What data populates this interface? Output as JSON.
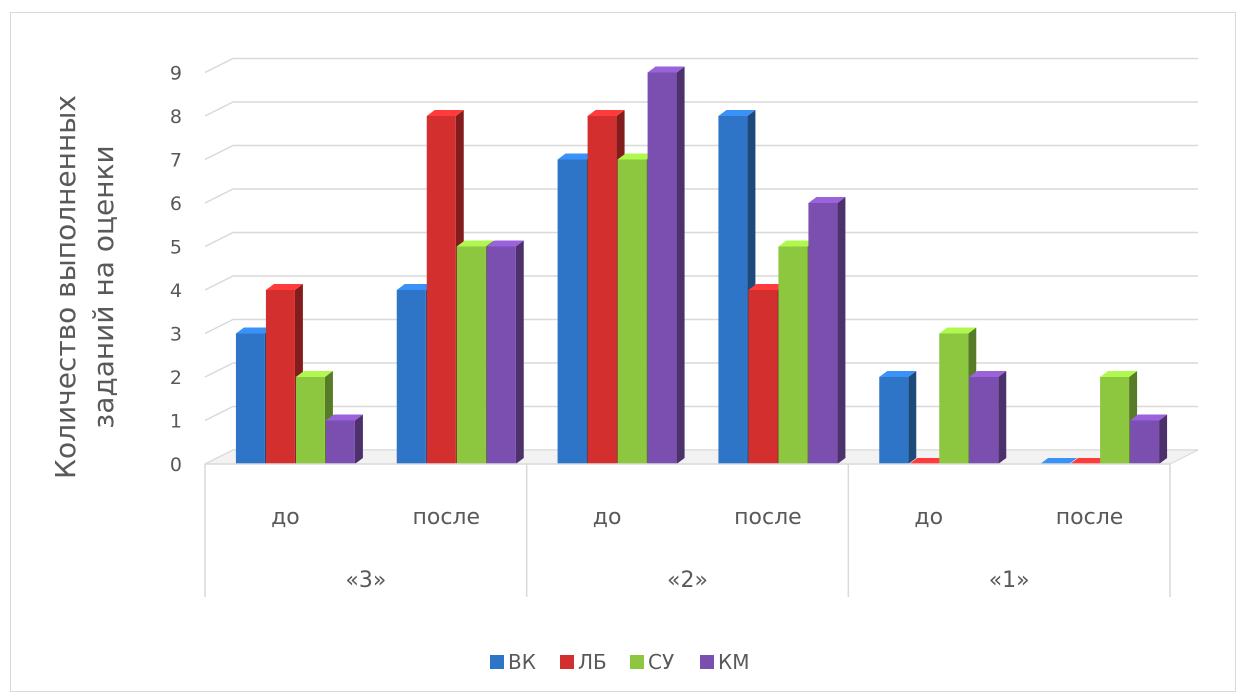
{
  "chart_data": {
    "type": "bar",
    "title": "",
    "ylabel_lines": [
      "Количество выполненных",
      "заданий на оценки"
    ],
    "xlabel": "",
    "ylim": [
      0,
      9
    ],
    "yticks": [
      0,
      1,
      2,
      3,
      4,
      5,
      6,
      7,
      8,
      9
    ],
    "grid": true,
    "legend_position": "bottom",
    "categories": [
      "до",
      "после",
      "до",
      "после",
      "до",
      "после"
    ],
    "groups": [
      {
        "label": "«3»",
        "span": 2
      },
      {
        "label": "«2»",
        "span": 2
      },
      {
        "label": "«1»",
        "span": 2
      }
    ],
    "series": [
      {
        "name": "ВК",
        "color": "#2e75c7",
        "values": [
          3,
          4,
          7,
          8,
          2,
          0
        ]
      },
      {
        "name": "ЛБ",
        "color": "#d42f2f",
        "values": [
          4,
          8,
          8,
          4,
          0,
          0
        ]
      },
      {
        "name": "СУ",
        "color": "#8dc63f",
        "values": [
          2,
          5,
          7,
          5,
          3,
          2
        ]
      },
      {
        "name": "КМ",
        "color": "#7b4fb0",
        "values": [
          1,
          5,
          9,
          6,
          2,
          1
        ]
      }
    ]
  }
}
